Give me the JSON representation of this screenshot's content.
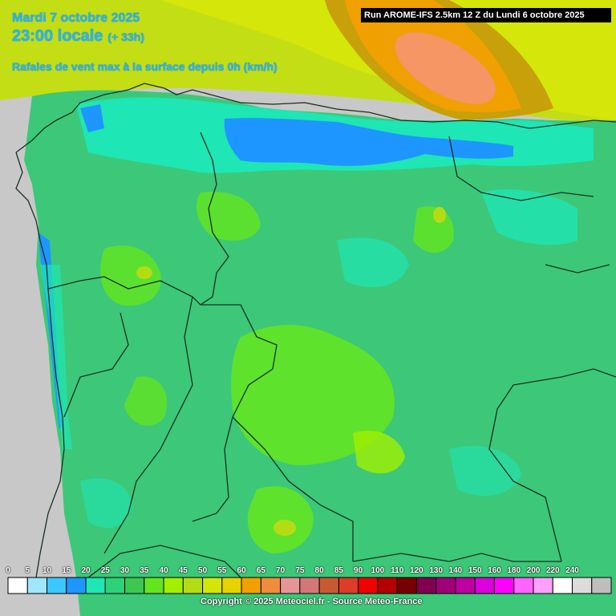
{
  "header": {
    "date": "Mardi 7 octobre 2025",
    "time": "23:00 locale",
    "offset": "(+ 33h)",
    "parameter": "Rafales de vent max à la surface depuis 0h (km/h)"
  },
  "run_info": "Run AROME-IFS 2.5km 12 Z du Lundi 6 octobre 2025",
  "legend": {
    "ticks": [
      "0",
      "5",
      "10",
      "15",
      "20",
      "25",
      "30",
      "35",
      "40",
      "45",
      "50",
      "55",
      "60",
      "65",
      "70",
      "75",
      "80",
      "85",
      "90",
      "100",
      "110",
      "120",
      "130",
      "140",
      "150",
      "160",
      "180",
      "200",
      "220",
      "240"
    ],
    "colors": [
      "#ffffff",
      "#a0e6ff",
      "#3cc8ff",
      "#1e96ff",
      "#1ee6b4",
      "#2dd278",
      "#3cc850",
      "#64e61e",
      "#a0f000",
      "#b4dc14",
      "#d2e60a",
      "#e6d200",
      "#f0a000",
      "#f08c3c",
      "#e69696",
      "#d27878",
      "#c85a32",
      "#dc3c28",
      "#f00000",
      "#b40000",
      "#780000",
      "#820050",
      "#a00078",
      "#be00a0",
      "#dc00dc",
      "#ff00ff",
      "#ff64ff",
      "#ffa0ff",
      "#ffffff",
      "#dcdcdc",
      "#bebebe"
    ]
  },
  "copyright": "Copyright © 2025 Meteociel.fr - Source Meteo-France",
  "map_colors": {
    "land_base": "#3cc878",
    "sea": "#c8c8c8",
    "strong_gust_core": "#f59664",
    "orange_band": "#f0a000",
    "ochre_band": "#c8a00a",
    "yellow_green": "#b4dc14",
    "coastal_blue": "#1e96ff",
    "cyan": "#1ee6b4",
    "light_green": "#64e61e",
    "borders": "#1a3020"
  }
}
